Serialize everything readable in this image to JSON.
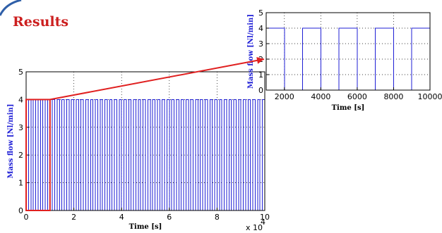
{
  "slide": {
    "title": "Results",
    "title_color": "#cc1f1f",
    "accent_color": "#e02020",
    "arc_color": "#2f5fa8"
  },
  "chart_data": [
    {
      "type": "line",
      "name": "overview",
      "xlabel": "Time [s]",
      "ylabel": "Mass flow [Nl/min]",
      "xlim": [
        0,
        100000
      ],
      "ylim": [
        0,
        5
      ],
      "x_ticks": [
        0,
        2,
        4,
        6,
        8,
        10
      ],
      "y_ticks": [
        0,
        1,
        2,
        3,
        4,
        5
      ],
      "x_exponent": "x 10",
      "x_exponent_power": "4",
      "grid": true,
      "series": [
        {
          "color": "#1f1fd6",
          "pattern": "square-wave",
          "high": 4,
          "low": 0,
          "period_s": 2000,
          "high_start_s": 1000,
          "high_end_s": 2000,
          "start_s": 0,
          "end_s": 100000
        }
      ],
      "zoom_box": {
        "x": [
          0,
          10000
        ],
        "y": [
          0,
          4
        ]
      }
    },
    {
      "type": "line",
      "name": "zoom",
      "xlabel": "Time [s]",
      "ylabel": "Mass flow [Nl/min]",
      "xlim": [
        1000,
        10000
      ],
      "ylim": [
        0,
        5
      ],
      "x_ticks": [
        2000,
        4000,
        6000,
        8000,
        10000
      ],
      "y_ticks": [
        0,
        1,
        2,
        3,
        4,
        5
      ],
      "grid": true,
      "series": [
        {
          "color": "#1f1fd6",
          "pattern": "square-wave",
          "high": 4,
          "low": 0,
          "period_s": 2000,
          "high_start_s": 1000,
          "high_end_s": 2000,
          "start_s": 1000,
          "end_s": 10000
        }
      ]
    }
  ]
}
